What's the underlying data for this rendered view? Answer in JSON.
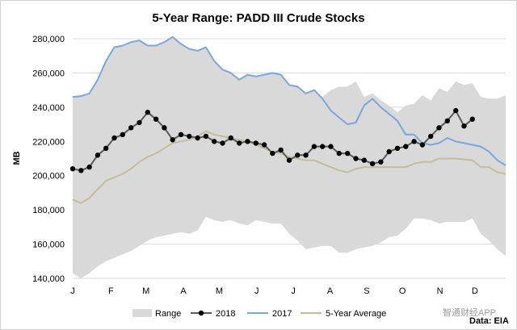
{
  "chart_data": {
    "type": "line",
    "title": "5-Year Range: PADD III Crude Stocks",
    "ylabel": "MB",
    "xlabel": "",
    "ylim": [
      140000,
      280000
    ],
    "yticks": [
      140000,
      160000,
      180000,
      200000,
      220000,
      240000,
      260000,
      280000
    ],
    "ytick_labels": [
      "140,000",
      "160,000",
      "180,000",
      "200,000",
      "220,000",
      "240,000",
      "260,000",
      "280,000"
    ],
    "xrange_weeks": [
      1,
      53
    ],
    "month_labels": [
      {
        "label": "J",
        "week": 1
      },
      {
        "label": "F",
        "week": 5.6
      },
      {
        "label": "M",
        "week": 9.8
      },
      {
        "label": "A",
        "week": 14.3
      },
      {
        "label": "M",
        "week": 18.6
      },
      {
        "label": "J",
        "week": 23.1
      },
      {
        "label": "J",
        "week": 27.5
      },
      {
        "label": "A",
        "week": 31.9
      },
      {
        "label": "S",
        "week": 36.3
      },
      {
        "label": "O",
        "week": 40.6
      },
      {
        "label": "N",
        "week": 45.1
      },
      {
        "label": "D",
        "week": 49.3
      }
    ],
    "range": {
      "name": "Range",
      "color": "#d9d9d9",
      "upper": [
        246000,
        246500,
        248000,
        256000,
        267000,
        275000,
        276000,
        278000,
        279000,
        276000,
        276000,
        278000,
        281000,
        277000,
        274000,
        273000,
        275000,
        267000,
        262000,
        260000,
        256000,
        259000,
        258000,
        259000,
        260000,
        259000,
        253000,
        252000,
        248000,
        250000,
        246000,
        250000,
        252000,
        252000,
        255000,
        246000,
        248000,
        244000,
        241000,
        237000,
        241000,
        242000,
        247000,
        244000,
        251000,
        249000,
        255000,
        253000,
        254000,
        246000,
        245000,
        245000,
        247000
      ],
      "lower": [
        143000,
        140000,
        143000,
        147000,
        150000,
        152000,
        154000,
        156000,
        159000,
        162000,
        164000,
        165000,
        166000,
        167000,
        166000,
        168000,
        176000,
        174000,
        173000,
        174000,
        172000,
        171000,
        174000,
        173000,
        172000,
        172000,
        166000,
        162000,
        157000,
        158000,
        159000,
        159000,
        155000,
        155000,
        157000,
        158000,
        159000,
        161000,
        164000,
        165000,
        169000,
        175000,
        175000,
        174000,
        172000,
        173000,
        173000,
        173000,
        175000,
        166000,
        162000,
        157000,
        153000
      ]
    },
    "series": [
      {
        "name": "2018",
        "color": "#595959",
        "marker": "circle",
        "start_week": 1,
        "values": [
          204000,
          203000,
          205000,
          212000,
          216000,
          222000,
          224000,
          228000,
          231000,
          237000,
          233000,
          228000,
          221000,
          224000,
          223000,
          222000,
          223000,
          220000,
          219000,
          222000,
          219000,
          220000,
          219000,
          218000,
          213000,
          215000,
          209000,
          212000,
          212000,
          217000,
          217000,
          217000,
          213000,
          213000,
          210000,
          209000,
          207000,
          208000,
          214000,
          216000,
          217000,
          220000,
          218000,
          223000,
          228000,
          232000,
          238000,
          229000,
          233000
        ]
      },
      {
        "name": "2017",
        "color": "#7ba7d9",
        "marker": "none",
        "start_week": 1,
        "values": [
          246000,
          246500,
          248000,
          256000,
          267000,
          275000,
          276000,
          278000,
          279000,
          276000,
          276000,
          278000,
          281000,
          277000,
          274000,
          273000,
          275000,
          267000,
          262000,
          260000,
          256000,
          259000,
          258000,
          259000,
          260000,
          259000,
          253000,
          252000,
          248000,
          250000,
          245000,
          238000,
          234000,
          230000,
          231000,
          241000,
          245000,
          240000,
          236000,
          232000,
          224000,
          224000,
          219000,
          218000,
          219000,
          222000,
          220000,
          219000,
          218000,
          217000,
          214000,
          209000,
          206000
        ]
      },
      {
        "name": "5-Year Average",
        "color": "#c4bd97",
        "marker": "none",
        "start_week": 1,
        "values": [
          186000,
          184000,
          187000,
          192000,
          197000,
          199000,
          201000,
          204000,
          208000,
          211000,
          213000,
          216000,
          219000,
          220000,
          221000,
          223000,
          226000,
          224000,
          223000,
          222000,
          221000,
          220000,
          218000,
          216000,
          214000,
          213000,
          211000,
          210000,
          209000,
          209000,
          207000,
          205000,
          203000,
          202000,
          204000,
          205000,
          205000,
          205000,
          205000,
          205000,
          205000,
          207000,
          208000,
          208000,
          210000,
          210000,
          210000,
          209500,
          209000,
          205000,
          205000,
          202000,
          201000
        ]
      }
    ],
    "legend": {
      "position": "bottom",
      "items": [
        {
          "label": "Range",
          "kind": "area"
        },
        {
          "label": "2018",
          "kind": "line-marker"
        },
        {
          "label": "2017",
          "kind": "line"
        },
        {
          "label": "5-Year Average",
          "kind": "line"
        }
      ]
    },
    "source": "Data: EIA",
    "watermark": "智通财经APP"
  }
}
